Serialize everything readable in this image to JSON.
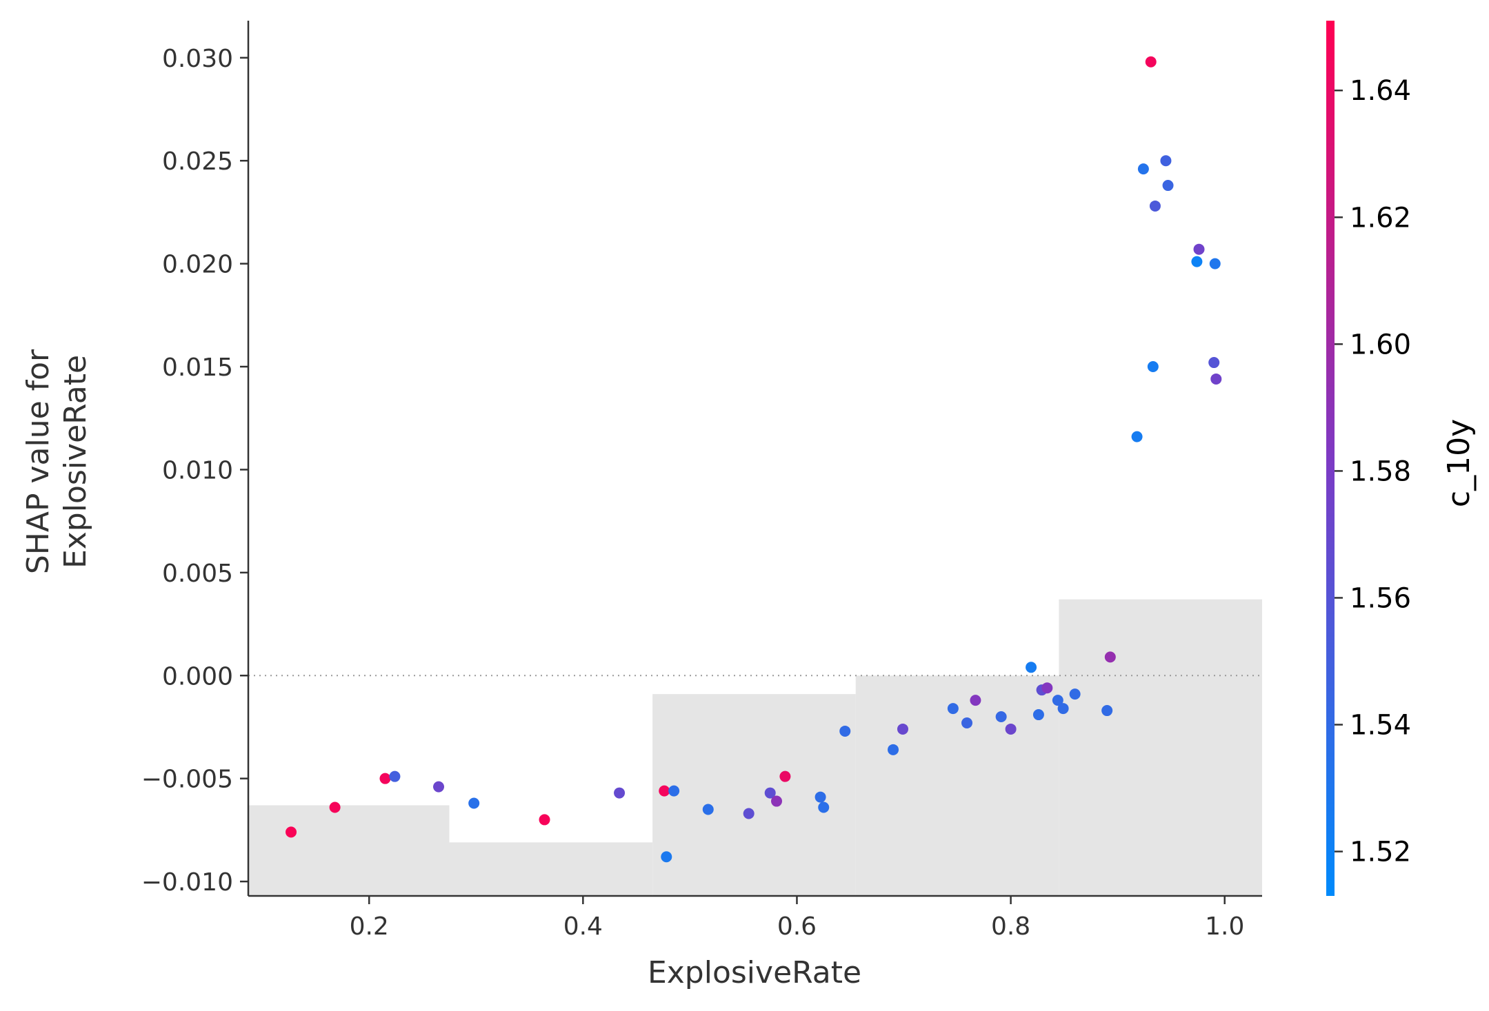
{
  "chart_data": {
    "type": "scatter",
    "title": "",
    "xlabel": "ExplosiveRate",
    "ylabel_lines": [
      "SHAP value for",
      "ExplosiveRate"
    ],
    "xlim": [
      0.087,
      1.035
    ],
    "ylim": [
      -0.0107,
      0.0318
    ],
    "x_ticks": [
      0.2,
      0.4,
      0.6,
      0.8,
      1.0
    ],
    "x_tick_labels": [
      "0.2",
      "0.4",
      "0.6",
      "0.8",
      "1.0"
    ],
    "y_ticks": [
      -0.01,
      -0.005,
      0.0,
      0.005,
      0.01,
      0.015,
      0.02,
      0.025,
      0.03
    ],
    "y_tick_labels": [
      "−0.010",
      "−0.005",
      "0.000",
      "0.005",
      "0.010",
      "0.015",
      "0.020",
      "0.025",
      "0.030"
    ],
    "zero_line": true,
    "histogram_background": {
      "color": "#e5e5e5",
      "bins": [
        {
          "x0": 0.087,
          "x1": 0.275,
          "top": -0.0063
        },
        {
          "x0": 0.275,
          "x1": 0.465,
          "top": -0.0081
        },
        {
          "x0": 0.465,
          "x1": 0.655,
          "top": -0.0009
        },
        {
          "x0": 0.655,
          "x1": 0.845,
          "top": 0.0
        },
        {
          "x0": 0.845,
          "x1": 1.035,
          "top": 0.0037
        }
      ]
    },
    "colorbar": {
      "label": "c_10y",
      "range": [
        1.513,
        1.651
      ],
      "ticks": [
        1.52,
        1.54,
        1.56,
        1.58,
        1.6,
        1.62,
        1.64
      ],
      "tick_labels": [
        "1.52",
        "1.54",
        "1.56",
        "1.58",
        "1.60",
        "1.62",
        "1.64"
      ],
      "color_low": "#008afb",
      "color_mid": "#7d3ac4",
      "color_high": "#ff0052"
    },
    "points": [
      {
        "x": 0.127,
        "y": -0.0076,
        "c": 1.648
      },
      {
        "x": 0.168,
        "y": -0.0064,
        "c": 1.646
      },
      {
        "x": 0.215,
        "y": -0.005,
        "c": 1.645
      },
      {
        "x": 0.224,
        "y": -0.0049,
        "c": 1.55
      },
      {
        "x": 0.265,
        "y": -0.0054,
        "c": 1.572
      },
      {
        "x": 0.298,
        "y": -0.0062,
        "c": 1.535
      },
      {
        "x": 0.364,
        "y": -0.007,
        "c": 1.647
      },
      {
        "x": 0.434,
        "y": -0.0057,
        "c": 1.568
      },
      {
        "x": 0.476,
        "y": -0.0056,
        "c": 1.645
      },
      {
        "x": 0.478,
        "y": -0.0088,
        "c": 1.528
      },
      {
        "x": 0.485,
        "y": -0.0056,
        "c": 1.537
      },
      {
        "x": 0.517,
        "y": -0.0065,
        "c": 1.536
      },
      {
        "x": 0.555,
        "y": -0.0067,
        "c": 1.565
      },
      {
        "x": 0.575,
        "y": -0.0057,
        "c": 1.565
      },
      {
        "x": 0.581,
        "y": -0.0061,
        "c": 1.59
      },
      {
        "x": 0.589,
        "y": -0.0049,
        "c": 1.64
      },
      {
        "x": 0.622,
        "y": -0.0059,
        "c": 1.538
      },
      {
        "x": 0.625,
        "y": -0.0064,
        "c": 1.536
      },
      {
        "x": 0.645,
        "y": -0.0027,
        "c": 1.54
      },
      {
        "x": 0.69,
        "y": -0.0036,
        "c": 1.538
      },
      {
        "x": 0.699,
        "y": -0.0026,
        "c": 1.57
      },
      {
        "x": 0.746,
        "y": -0.0016,
        "c": 1.54
      },
      {
        "x": 0.759,
        "y": -0.0023,
        "c": 1.545
      },
      {
        "x": 0.767,
        "y": -0.0012,
        "c": 1.585
      },
      {
        "x": 0.791,
        "y": -0.002,
        "c": 1.542
      },
      {
        "x": 0.8,
        "y": -0.0026,
        "c": 1.572
      },
      {
        "x": 0.819,
        "y": 0.0004,
        "c": 1.525
      },
      {
        "x": 0.826,
        "y": -0.0019,
        "c": 1.538
      },
      {
        "x": 0.829,
        "y": -0.0007,
        "c": 1.565
      },
      {
        "x": 0.834,
        "y": -0.0006,
        "c": 1.585
      },
      {
        "x": 0.844,
        "y": -0.0012,
        "c": 1.54
      },
      {
        "x": 0.849,
        "y": -0.0016,
        "c": 1.54
      },
      {
        "x": 0.86,
        "y": -0.0009,
        "c": 1.54
      },
      {
        "x": 0.89,
        "y": -0.0017,
        "c": 1.54
      },
      {
        "x": 0.893,
        "y": 0.0009,
        "c": 1.595
      },
      {
        "x": 0.918,
        "y": 0.0116,
        "c": 1.525
      },
      {
        "x": 0.924,
        "y": 0.0246,
        "c": 1.533
      },
      {
        "x": 0.931,
        "y": 0.0298,
        "c": 1.645
      },
      {
        "x": 0.933,
        "y": 0.015,
        "c": 1.525
      },
      {
        "x": 0.935,
        "y": 0.0228,
        "c": 1.555
      },
      {
        "x": 0.945,
        "y": 0.025,
        "c": 1.548
      },
      {
        "x": 0.947,
        "y": 0.0238,
        "c": 1.545
      },
      {
        "x": 0.974,
        "y": 0.0201,
        "c": 1.52
      },
      {
        "x": 0.976,
        "y": 0.0207,
        "c": 1.575
      },
      {
        "x": 0.99,
        "y": 0.0152,
        "c": 1.56
      },
      {
        "x": 0.991,
        "y": 0.02,
        "c": 1.53
      },
      {
        "x": 0.992,
        "y": 0.0144,
        "c": 1.575
      }
    ]
  }
}
